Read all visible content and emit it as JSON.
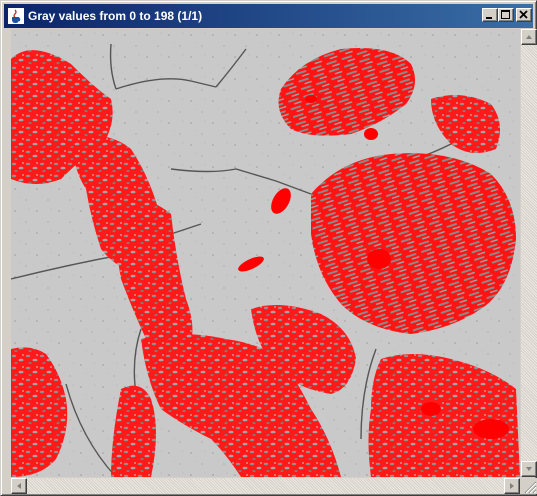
{
  "window": {
    "title": "Gray values from 0 to 198 (1/1)",
    "app_icon": "java-cup-icon",
    "controls": [
      "minimize-icon",
      "maximize-icon",
      "close-icon"
    ]
  },
  "image": {
    "background_color": "#c9c9c9",
    "highlight_color": "#ff0000",
    "boundary_color": "#555555"
  },
  "scrollbars": {
    "vertical_icons": [
      "arrow-up-icon",
      "arrow-down-icon"
    ],
    "horizontal_icons": [
      "arrow-left-icon",
      "arrow-right-icon"
    ]
  }
}
